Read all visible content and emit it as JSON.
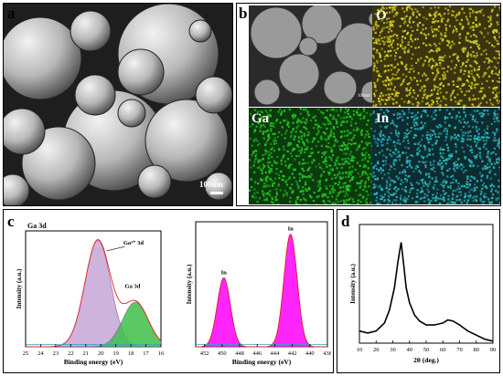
{
  "panels": {
    "a": {
      "label": "a",
      "scalebar": "100nm"
    },
    "b": {
      "label": "b",
      "maps": {
        "O": "O",
        "Ga": "Ga",
        "In": "In"
      },
      "small_scalebar": "100nm"
    },
    "c": {
      "label": "c"
    },
    "d": {
      "label": "d"
    }
  },
  "colors": {
    "O": "#d8d020",
    "Ga": "#22c822",
    "In": "#2ab8c0"
  },
  "chart_data": [
    {
      "type": "line",
      "panel": "c-left",
      "title": "Ga 3d",
      "xlabel": "Binding energy (eV)",
      "ylabel": "Intensity (a.u.)",
      "xlim": [
        25,
        16
      ],
      "xticks": [
        25,
        24,
        23,
        22,
        21,
        20,
        19,
        18,
        17,
        16
      ],
      "annotations": [
        "Ga³⁺ 3d",
        "Ga 3d"
      ],
      "peaks": [
        {
          "name": "Ga³⁺ 3d",
          "center": 20.2,
          "height": 1.0,
          "fill": "#c6a6d6"
        },
        {
          "name": "Ga 3d",
          "center": 17.7,
          "height": 0.42,
          "fill": "#3fbf4a"
        }
      ]
    },
    {
      "type": "line",
      "panel": "c-right",
      "xlabel": "Binding energy (eV)",
      "ylabel": "Intensity (a.u.)",
      "xlim": [
        453,
        438
      ],
      "xticks": [
        452,
        450,
        448,
        446,
        444,
        442,
        440,
        438
      ],
      "annotations": [
        "In",
        "In"
      ],
      "peaks": [
        {
          "name": "In",
          "center": 449.8,
          "height": 0.6,
          "fill": "#ff00ff"
        },
        {
          "name": "In",
          "center": 442.2,
          "height": 0.98,
          "fill": "#ff00ff"
        }
      ]
    },
    {
      "type": "line",
      "panel": "d",
      "xlabel": "2θ (deg.)",
      "ylabel": "Intensity (a.u.)",
      "xlim": [
        10,
        90
      ],
      "xticks": [
        10,
        20,
        30,
        40,
        50,
        60,
        70,
        80,
        90
      ],
      "series": [
        {
          "x": [
            10,
            15,
            20,
            25,
            28,
            31,
            33,
            35,
            36.5,
            38,
            40,
            43,
            46,
            50,
            55,
            60,
            63,
            66,
            70,
            75,
            80,
            85,
            90
          ],
          "values": [
            0.12,
            0.1,
            0.12,
            0.2,
            0.33,
            0.55,
            0.8,
            1.0,
            0.78,
            0.55,
            0.4,
            0.28,
            0.22,
            0.18,
            0.18,
            0.2,
            0.23,
            0.22,
            0.18,
            0.12,
            0.08,
            0.04,
            0.02
          ]
        }
      ]
    }
  ]
}
